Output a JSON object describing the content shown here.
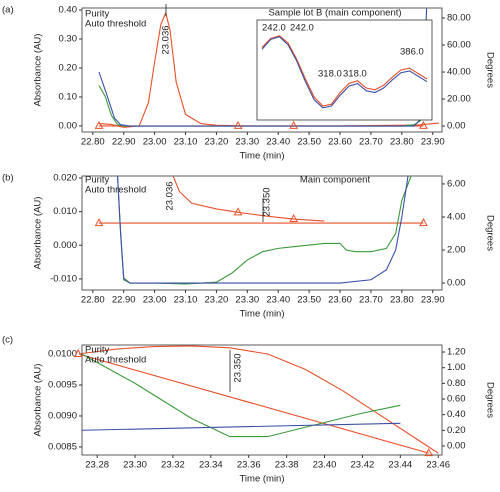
{
  "chart_data": [
    {
      "type": "line",
      "label": "(a)",
      "y_label": "Absorbance (AU)",
      "y2_label": "Degrees",
      "x_label": "Time (min)",
      "xlim": [
        22.765,
        23.93
      ],
      "ylim": [
        -0.021,
        0.407
      ],
      "y2lim": [
        -4.4,
        87.4
      ],
      "xticks": [
        {
          "value": 22.8,
          "label": "22.80"
        },
        {
          "value": 22.9,
          "label": "22.90"
        },
        {
          "value": 23.0,
          "label": "23.00"
        },
        {
          "value": 23.1,
          "label": "23.10"
        },
        {
          "value": 23.2,
          "label": "23.20"
        },
        {
          "value": 23.3,
          "label": "23.30"
        },
        {
          "value": 23.4,
          "label": "23.40"
        },
        {
          "value": 23.5,
          "label": "23.50"
        },
        {
          "value": 23.6,
          "label": "23.60"
        },
        {
          "value": 23.7,
          "label": "23.70"
        },
        {
          "value": 23.8,
          "label": "23.80"
        },
        {
          "value": 23.9,
          "label": "23.90"
        }
      ],
      "yticks": [
        {
          "value": 0,
          "label": "0.00"
        },
        {
          "value": 0.1,
          "label": "0.10"
        },
        {
          "value": 0.2,
          "label": "0.20"
        },
        {
          "value": 0.3,
          "label": "0.30"
        },
        {
          "value": 0.4,
          "label": "0.40"
        }
      ],
      "y2ticks": [
        {
          "value": 0,
          "label": "0.00"
        },
        {
          "value": 20,
          "label": "20.00"
        },
        {
          "value": 40,
          "label": "40.00"
        },
        {
          "value": 60,
          "label": "60.00"
        },
        {
          "value": 80,
          "label": "80.00"
        }
      ],
      "annotations": [
        "23.036"
      ],
      "series": [
        {
          "color": "#e8502a",
          "x": [
            22.82,
            22.86,
            22.88,
            22.9,
            22.95,
            22.98,
            23.0,
            23.02,
            23.036,
            23.05,
            23.07,
            23.1,
            23.15,
            23.2,
            23.3,
            23.6,
            23.85,
            23.92
          ],
          "values": [
            0.008,
            0.005,
            0.0,
            -0.005,
            0.0,
            0.08,
            0.22,
            0.35,
            0.39,
            0.33,
            0.15,
            0.04,
            0.008,
            0.002,
            0.0,
            0.0,
            0.003,
            0.01
          ]
        },
        {
          "color": "#e8502a",
          "x": [
            22.82,
            23.87
          ],
          "values": [
            0,
            0
          ]
        },
        {
          "color": "#e8502a",
          "marker": "triangle",
          "line": false,
          "x": [
            22.82,
            23.27,
            23.45,
            23.87
          ],
          "values": [
            0,
            0,
            0,
            0
          ]
        },
        {
          "name": "Purity",
          "color": "#3a9a3a",
          "axis": "y2",
          "x": [
            22.82,
            22.84,
            22.86,
            22.88,
            22.9,
            23.8,
            23.84,
            23.86,
            23.87
          ],
          "values": [
            30,
            22,
            8,
            1,
            0,
            0,
            1,
            4,
            10
          ]
        },
        {
          "name": "Auto threshold",
          "color": "#3b4fa8",
          "axis": "y2",
          "x": [
            22.82,
            22.85,
            22.87,
            22.89,
            22.92,
            23.84,
            23.86,
            23.87,
            23.875,
            23.88
          ],
          "values": [
            40,
            20,
            6,
            1,
            0,
            0,
            5,
            20,
            50,
            87
          ]
        }
      ],
      "inset": {
        "title": "Sample lot B (main component)",
        "series": [
          {
            "color": "#e8502a",
            "values": [
              0.75,
              0.85,
              0.88,
              0.8,
              0.62,
              0.4,
              0.2,
              0.1,
              0.12,
              0.25,
              0.35,
              0.38,
              0.3,
              0.28,
              0.33,
              0.42,
              0.5,
              0.52,
              0.46,
              0.4
            ]
          },
          {
            "color": "#3b4fa8",
            "values": [
              0.73,
              0.84,
              0.87,
              0.78,
              0.6,
              0.37,
              0.17,
              0.08,
              0.1,
              0.22,
              0.32,
              0.35,
              0.27,
              0.25,
              0.3,
              0.39,
              0.47,
              0.49,
              0.43,
              0.37
            ]
          }
        ],
        "labels": [
          {
            "text": "242.0",
            "color": "#e8502a"
          },
          {
            "text": "242.0",
            "color": "#3b4fa8"
          },
          {
            "text": "318.0",
            "color": "#222222"
          },
          {
            "text": "318.0",
            "color": "#e8502a"
          },
          {
            "text": "386.0",
            "color": "#e8502a"
          }
        ]
      }
    },
    {
      "type": "line",
      "label": "(b)",
      "y_label": "Absorbance (AU)",
      "y2_label": "Degrees",
      "x_label": "Time (min)",
      "xlim": [
        22.765,
        23.93
      ],
      "ylim": [
        -0.0133,
        0.0206
      ],
      "y2lim": [
        -0.42,
        6.48
      ],
      "xticks": [
        {
          "value": 22.8,
          "label": "22.80"
        },
        {
          "value": 22.9,
          "label": "22.90"
        },
        {
          "value": 23.0,
          "label": "23.00"
        },
        {
          "value": 23.1,
          "label": "23.10"
        },
        {
          "value": 23.2,
          "label": "23.20"
        },
        {
          "value": 23.3,
          "label": "23.30"
        },
        {
          "value": 23.4,
          "label": "23.40"
        },
        {
          "value": 23.5,
          "label": "23.50"
        },
        {
          "value": 23.6,
          "label": "23.60"
        },
        {
          "value": 23.7,
          "label": "23.70"
        },
        {
          "value": 23.8,
          "label": "23.80"
        },
        {
          "value": 23.9,
          "label": "23.90"
        }
      ],
      "yticks": [
        {
          "value": -0.01,
          "label": "-0.010"
        },
        {
          "value": 0,
          "label": "0.000"
        },
        {
          "value": 0.01,
          "label": "0.010"
        },
        {
          "value": 0.02,
          "label": "0.020"
        }
      ],
      "y2ticks": [
        {
          "value": 0,
          "label": "0.00"
        },
        {
          "value": 2,
          "label": "2.00"
        },
        {
          "value": 4,
          "label": "4.00"
        },
        {
          "value": 6,
          "label": "6.00"
        }
      ],
      "annotations": [
        "23.036",
        "23.350",
        "Main component"
      ],
      "series": [
        {
          "color": "#e8502a",
          "x": [
            23.06,
            23.08,
            23.12,
            23.2,
            23.27,
            23.35,
            23.45,
            23.55
          ],
          "values": [
            0.0206,
            0.016,
            0.0125,
            0.0108,
            0.0098,
            0.0088,
            0.0078,
            0.0072
          ]
        },
        {
          "color": "#e8502a",
          "x": [
            22.82,
            23.87
          ],
          "values": [
            0.0066,
            0.0066
          ]
        },
        {
          "color": "#e8502a",
          "marker": "triangle",
          "line": false,
          "x": [
            22.82,
            23.27,
            23.45,
            23.87
          ],
          "values": [
            0.0066,
            0.0098,
            0.0078,
            0.0066
          ]
        },
        {
          "name": "Purity",
          "color": "#3a9a3a",
          "axis": "y2",
          "x": [
            22.88,
            22.89,
            22.9,
            22.92,
            23.0,
            23.1,
            23.2,
            23.25,
            23.3,
            23.35,
            23.4,
            23.45,
            23.5,
            23.55,
            23.6,
            23.62,
            23.65,
            23.7,
            23.75,
            23.78,
            23.8,
            23.83
          ],
          "values": [
            6.48,
            3.0,
            0.2,
            0.0,
            0.0,
            -0.05,
            0.05,
            0.6,
            1.4,
            1.9,
            2.1,
            2.2,
            2.3,
            2.4,
            2.4,
            2.0,
            1.9,
            1.9,
            2.1,
            3.0,
            5.0,
            6.48
          ]
        },
        {
          "name": "Auto threshold",
          "color": "#3b4fa8",
          "axis": "y2",
          "x": [
            22.88,
            22.89,
            22.9,
            22.92,
            23.6,
            23.7,
            23.75,
            23.78,
            23.8,
            23.82
          ],
          "values": [
            6.48,
            3.0,
            0.3,
            0.0,
            0.0,
            0.2,
            0.8,
            2.0,
            4.0,
            6.48
          ]
        }
      ]
    },
    {
      "type": "line",
      "label": "(c)",
      "y_label": "Absorbance (AU)",
      "y2_label": "Degrees",
      "x_label": "Time (min)",
      "xlim": [
        23.272,
        23.462
      ],
      "ylim": [
        0.00837,
        0.010145
      ],
      "y2lim": [
        -0.115,
        1.29
      ],
      "xticks": [
        23.28,
        {
          "value": 23.3,
          "label": "23.30"
        },
        23.32,
        23.34,
        23.36,
        23.38,
        {
          "value": 23.4,
          "label": "23.40"
        },
        23.42,
        23.44,
        23.46
      ],
      "yticks": [
        0.0085,
        {
          "value": 0.009,
          "label": "0.0090"
        },
        0.0095,
        {
          "value": 0.01,
          "label": "0.0100"
        }
      ],
      "y2ticks": [
        {
          "value": 0,
          "label": "0.00"
        },
        {
          "value": 0.2,
          "label": "0.20"
        },
        {
          "value": 0.4,
          "label": "0.40"
        },
        {
          "value": 0.6,
          "label": "0.60"
        },
        {
          "value": 0.8,
          "label": "0.80"
        },
        {
          "value": 1.0,
          "label": "1.00"
        },
        {
          "value": 1.2,
          "label": "1.20"
        }
      ],
      "annotations": [
        "23.350"
      ],
      "series": [
        {
          "color": "#e8502a",
          "x": [
            23.27,
            23.29,
            23.31,
            23.33,
            23.35,
            23.37,
            23.39,
            23.41,
            23.43,
            23.45,
            23.46
          ],
          "values": [
            0.01,
            0.01008,
            0.01012,
            0.01013,
            0.0101,
            0.01,
            0.00975,
            0.0094,
            0.009,
            0.0086,
            0.0084
          ]
        },
        {
          "color": "#e8502a",
          "marker": "triangle",
          "x": [
            23.27,
            23.455
          ],
          "values": [
            0.01,
            0.0084
          ]
        },
        {
          "name": "Purity",
          "color": "#3a9a3a",
          "axis": "y2",
          "x": [
            23.27,
            23.3,
            23.33,
            23.35,
            23.37,
            23.4,
            23.42,
            23.44
          ],
          "values": [
            1.2,
            0.8,
            0.35,
            0.12,
            0.12,
            0.3,
            0.42,
            0.52
          ]
        },
        {
          "name": "Auto threshold",
          "color": "#3b4fa8",
          "axis": "y2",
          "x": [
            23.27,
            23.44
          ],
          "values": [
            0.2,
            0.29
          ]
        }
      ]
    }
  ]
}
